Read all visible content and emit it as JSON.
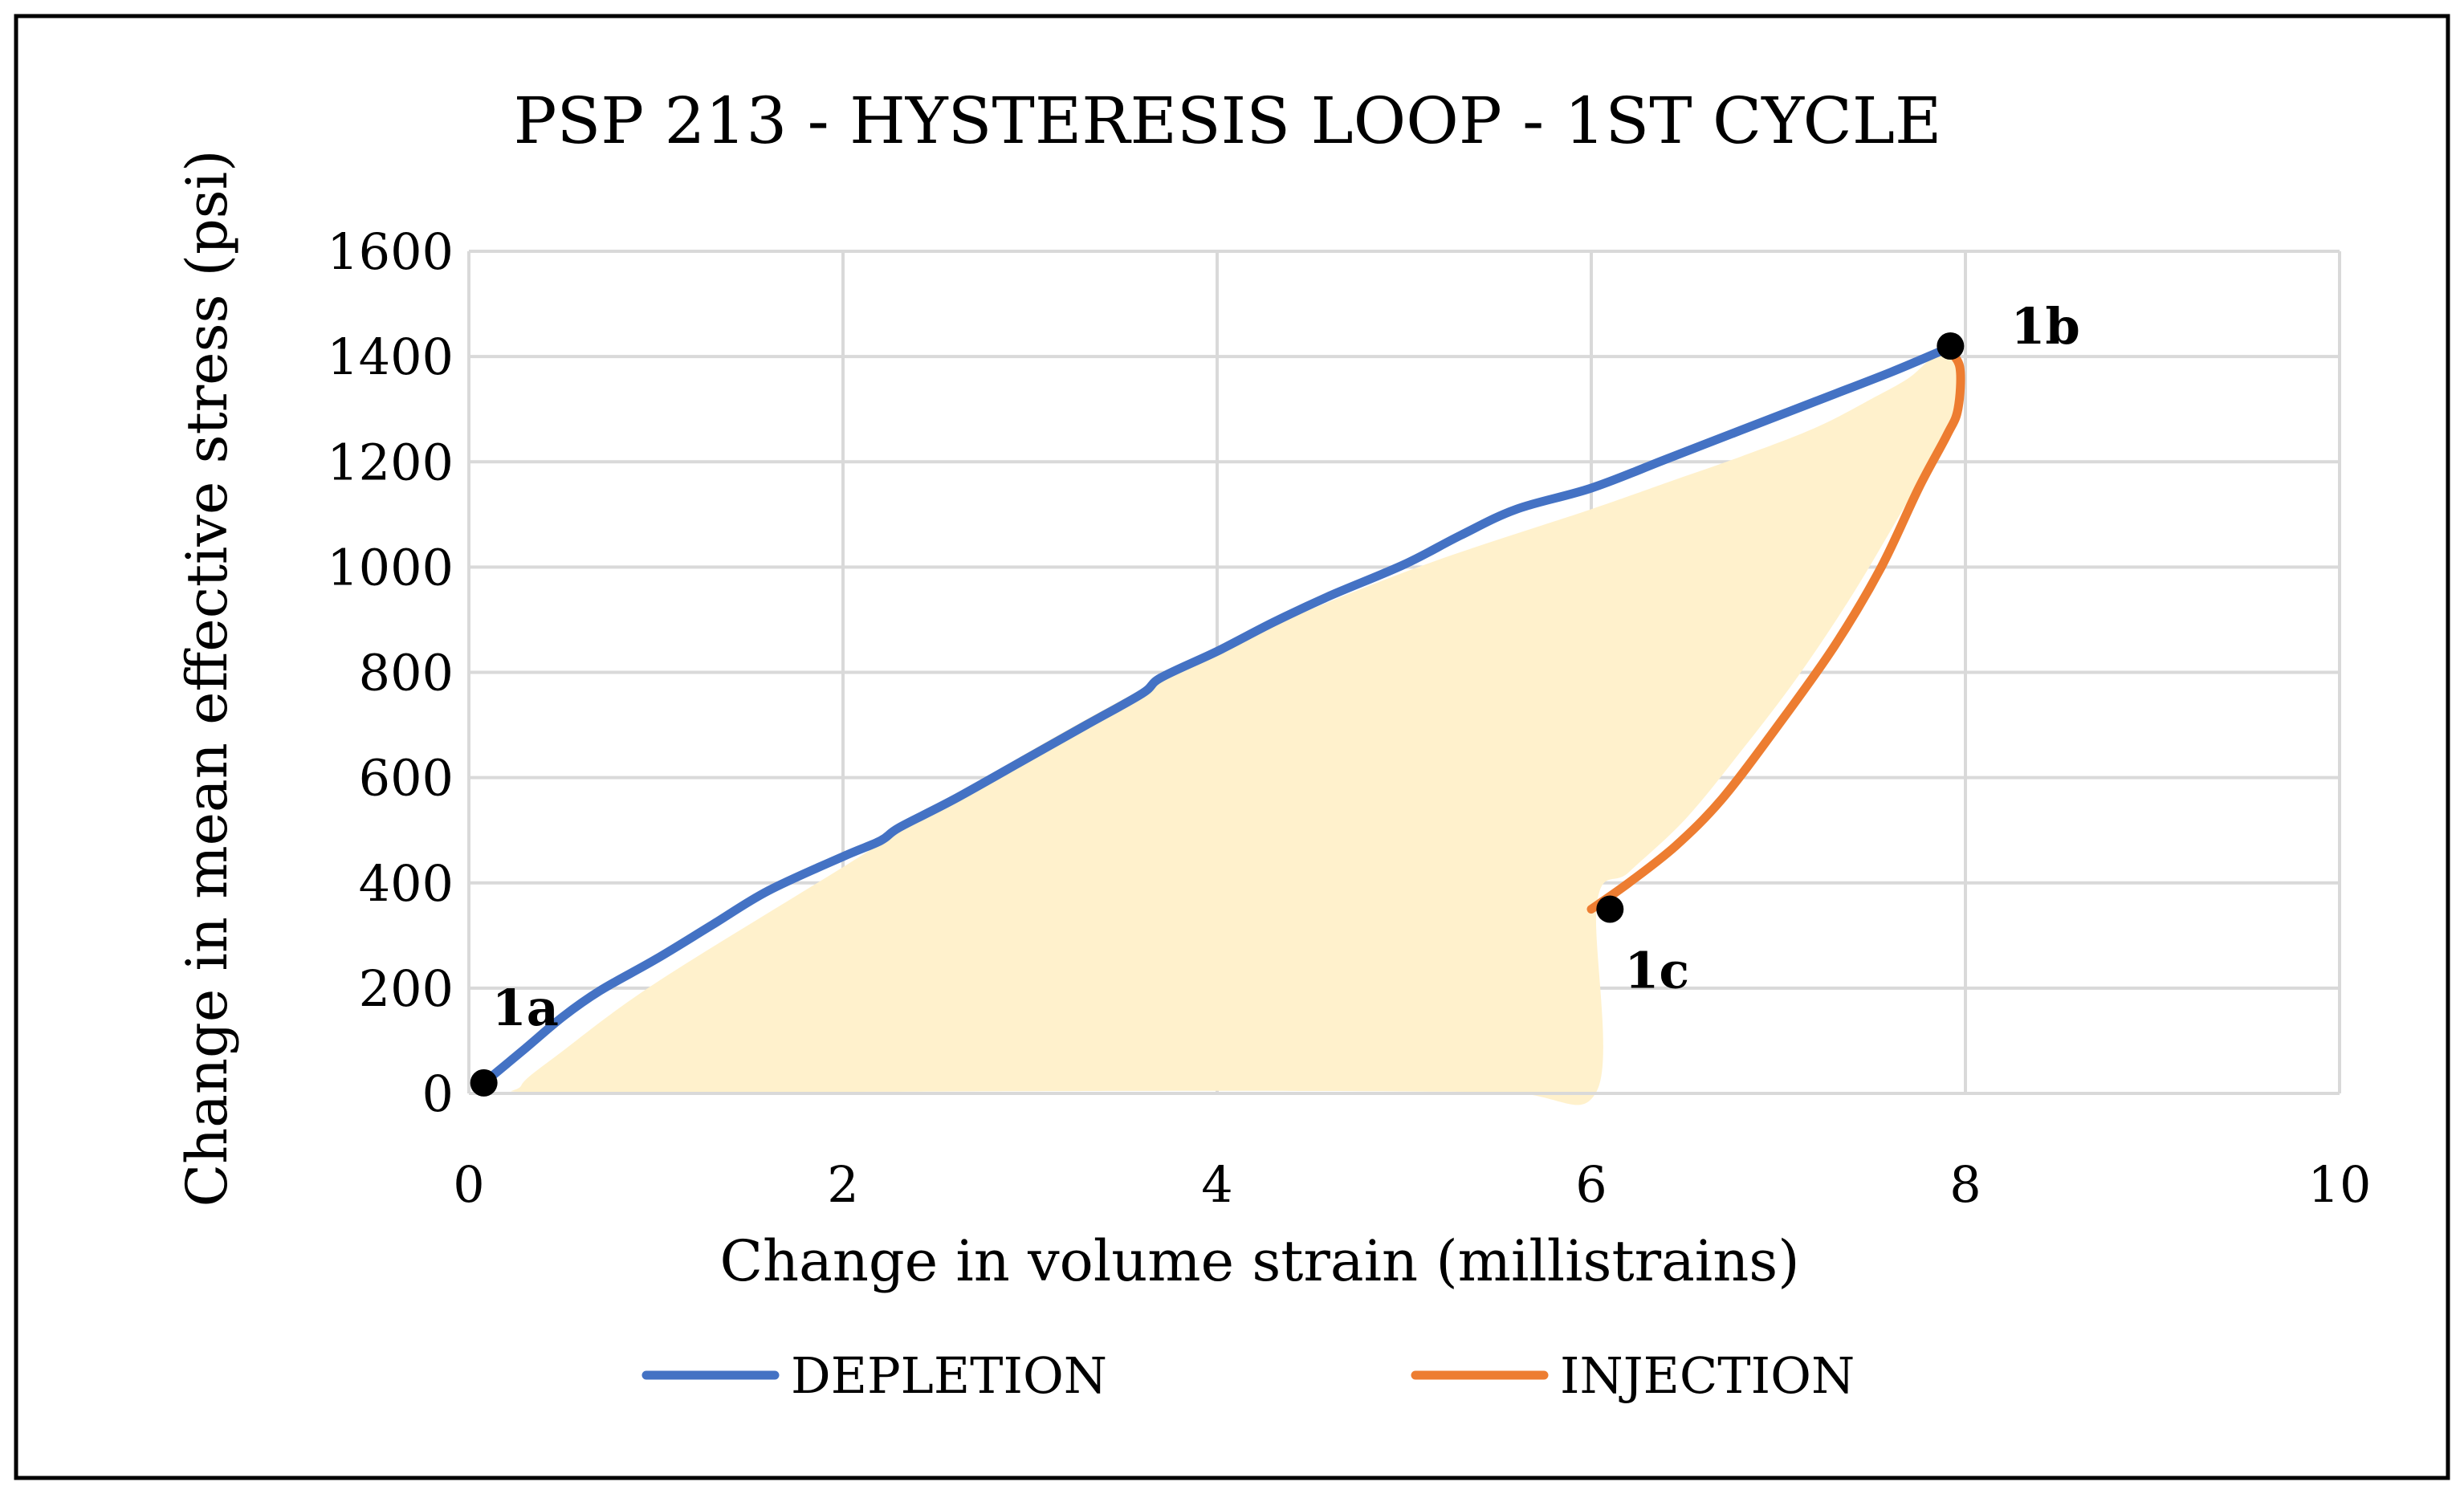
{
  "chart_data": {
    "type": "line",
    "title": "PSP 213 - HYSTERESIS LOOP - 1ST CYCLE",
    "xlabel": "Change in volume strain (millistrains)",
    "ylabel": "Change in mean effective stress (psi)",
    "xlim": [
      0,
      10
    ],
    "ylim": [
      0,
      1600
    ],
    "x_ticks": [
      0,
      2,
      4,
      6,
      8,
      10
    ],
    "y_ticks": [
      0,
      200,
      400,
      600,
      800,
      1000,
      1200,
      1400,
      1600
    ],
    "x_tick_labels": [
      "0",
      "2",
      "4",
      "6",
      "8",
      "10"
    ],
    "y_tick_labels": [
      "0",
      "200",
      "400",
      "600",
      "800",
      "1000",
      "1200",
      "1400",
      "1600"
    ],
    "grid": true,
    "legend_position": "bottom",
    "series": [
      {
        "name": "DEPLETION",
        "color": "#4472C4",
        "x": [
          0.08,
          0.3,
          0.5,
          0.7,
          1.0,
          1.3,
          1.6,
          2.0,
          2.2,
          2.3,
          2.6,
          3.0,
          3.3,
          3.6,
          3.7,
          4.0,
          4.3,
          4.6,
          5.0,
          5.3,
          5.6,
          6.0,
          6.4,
          6.8,
          7.2,
          7.6,
          7.9
        ],
        "y": [
          20,
          85,
          145,
          195,
          255,
          320,
          385,
          450,
          480,
          505,
          560,
          640,
          700,
          760,
          790,
          840,
          895,
          945,
          1005,
          1060,
          1110,
          1150,
          1205,
          1260,
          1315,
          1370,
          1415
        ]
      },
      {
        "name": "INJECTION",
        "color": "#ED7D31",
        "x": [
          7.9,
          7.97,
          7.96,
          7.9,
          7.75,
          7.55,
          7.3,
          7.0,
          6.7,
          6.45,
          6.2,
          6.0
        ],
        "y": [
          1415,
          1380,
          1300,
          1250,
          1150,
          1000,
          850,
          700,
          560,
          470,
          400,
          350
        ]
      }
    ],
    "loop_area": {
      "color": "#FFF1CC",
      "x": [
        7.85,
        7.7,
        7.5,
        7.2,
        6.8,
        6.4,
        6.0,
        5.0,
        4.0,
        3.0,
        2.0,
        1.0,
        0.5,
        0.28,
        0.4,
        2.0,
        4.0,
        5.5,
        6.03,
        6.03,
        6.2,
        6.5,
        6.8,
        7.1,
        7.4,
        7.7,
        7.95,
        7.95
      ],
      "y": [
        1405,
        1360,
        1320,
        1265,
        1210,
        1160,
        1110,
        990,
        840,
        650,
        430,
        210,
        80,
        15,
        2,
        3,
        5,
        3,
        5,
        360,
        420,
        520,
        650,
        790,
        950,
        1130,
        1280,
        1400
      ]
    },
    "annotations": [
      {
        "label": "1a",
        "x": 0.08,
        "y": 20
      },
      {
        "label": "1b",
        "x": 7.92,
        "y": 1420
      },
      {
        "label": "1c",
        "x": 6.1,
        "y": 350
      }
    ]
  }
}
